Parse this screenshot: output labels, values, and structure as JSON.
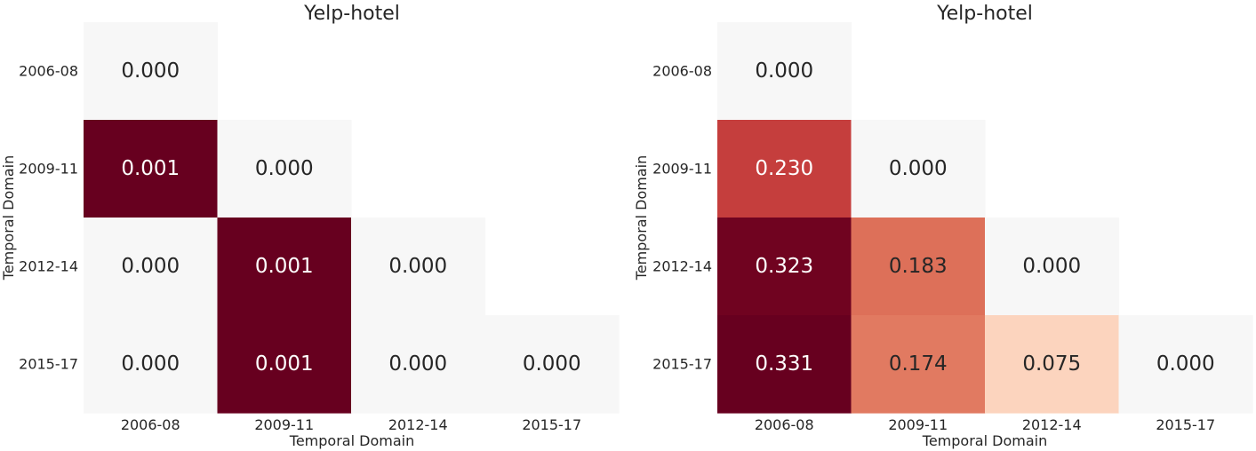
{
  "chart_data": [
    {
      "type": "heatmap",
      "title": "Yelp-hotel",
      "xlabel": "Temporal Domain",
      "ylabel": "Temporal Domain",
      "x_categories": [
        "2006-08",
        "2009-11",
        "2012-14",
        "2015-17"
      ],
      "y_categories": [
        "2006-08",
        "2009-11",
        "2012-14",
        "2015-17"
      ],
      "matrix": [
        [
          0.0,
          null,
          null,
          null
        ],
        [
          0.001,
          0.0,
          null,
          null
        ],
        [
          0.0,
          0.001,
          0.0,
          null
        ],
        [
          0.0,
          0.001,
          0.0,
          0.0
        ]
      ],
      "cell_labels": [
        [
          "0.000",
          null,
          null,
          null
        ],
        [
          "0.001",
          "0.000",
          null,
          null
        ],
        [
          "0.000",
          "0.001",
          "0.000",
          null
        ],
        [
          "0.000",
          "0.001",
          "0.000",
          "0.000"
        ]
      ],
      "colormap": "RdBu_r",
      "vmin": -0.001,
      "vmax": 0.001,
      "grid": false,
      "colorbar": false
    },
    {
      "type": "heatmap",
      "title": "Yelp-hotel",
      "xlabel": "Temporal Domain",
      "ylabel": "Temporal Domain",
      "x_categories": [
        "2006-08",
        "2009-11",
        "2012-14",
        "2015-17"
      ],
      "y_categories": [
        "2006-08",
        "2009-11",
        "2012-14",
        "2015-17"
      ],
      "matrix": [
        [
          0.0,
          null,
          null,
          null
        ],
        [
          0.23,
          0.0,
          null,
          null
        ],
        [
          0.323,
          0.183,
          0.0,
          null
        ],
        [
          0.331,
          0.174,
          0.075,
          0.0
        ]
      ],
      "cell_labels": [
        [
          "0.000",
          null,
          null,
          null
        ],
        [
          "0.230",
          "0.000",
          null,
          null
        ],
        [
          "0.323",
          "0.183",
          "0.000",
          null
        ],
        [
          "0.331",
          "0.174",
          "0.075",
          "0.000"
        ]
      ],
      "colormap": "RdBu_r",
      "vmin": -0.331,
      "vmax": 0.331,
      "grid": false,
      "colorbar": false
    }
  ]
}
